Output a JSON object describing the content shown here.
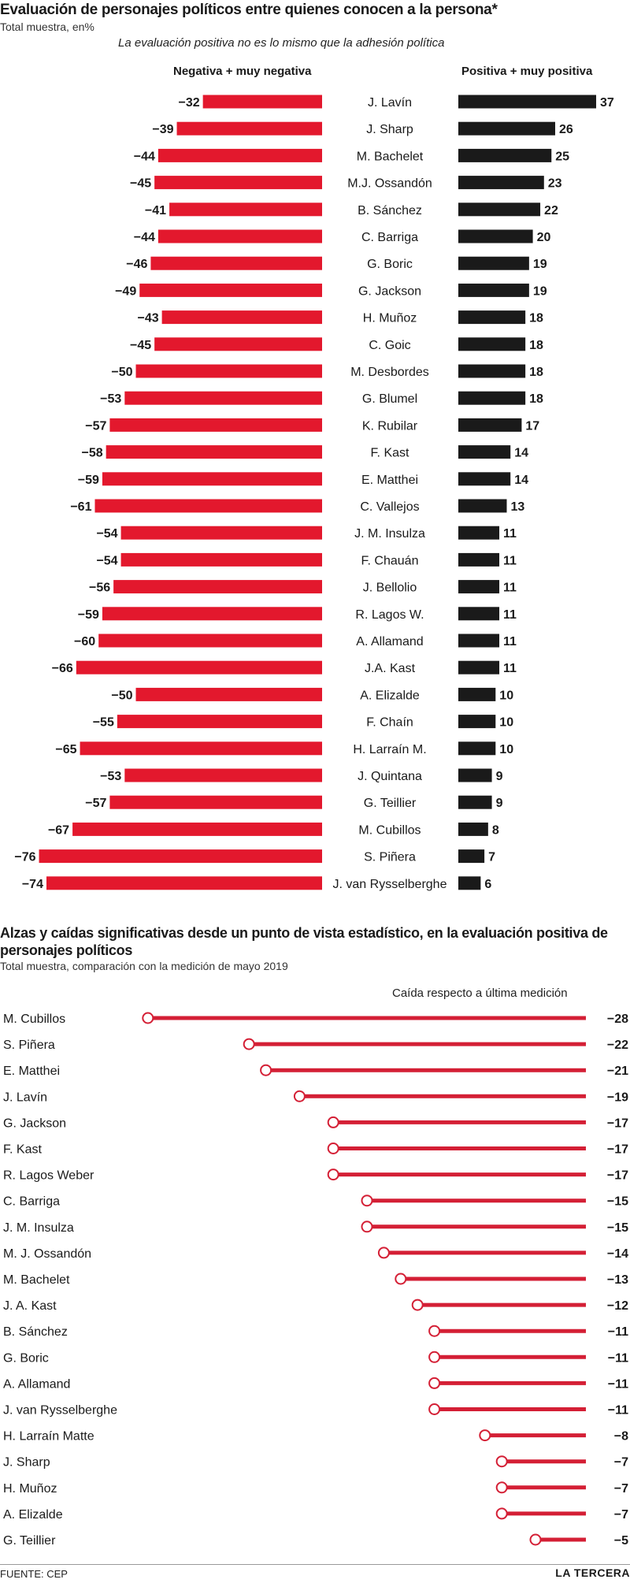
{
  "chart1": {
    "title": "Evaluación de personajes políticos entre quienes conocen a la persona*",
    "subtitle": "Total muestra, en%",
    "note": "La evaluación positiva no es lo mismo que la adhesión política",
    "negative_header": "Negativa + muy negativa",
    "positive_header": "Positiva + muy positiva"
  },
  "chart2": {
    "title": "Alzas y caídas significativas desde un punto de vista estadístico, en la evaluación positiva de personajes políticos",
    "subtitle": "Total muestra, comparación con la medición de mayo 2019",
    "header": "Caída respecto a última medición"
  },
  "footer": {
    "source": "FUENTE: CEP",
    "brand": "LA TERCERA"
  },
  "colors": {
    "negative": "#e3182d",
    "positive": "#1a1a1a",
    "dumbbell": "#d41f35"
  },
  "chart_data": [
    {
      "type": "bar",
      "layout": "diverging",
      "categories": [
        "J. Lavín",
        "J. Sharp",
        "M. Bachelet",
        "M.J. Ossandón",
        "B. Sánchez",
        "C. Barriga",
        "G. Boric",
        "G. Jackson",
        "H. Muñoz",
        "C. Goic",
        "M. Desbordes",
        "G. Blumel",
        "K. Rubilar",
        "F. Kast",
        "E. Matthei",
        "C. Vallejos",
        "J. M. Insulza",
        "F. Chauán",
        "J. Bellolio",
        "R. Lagos W.",
        "A. Allamand",
        "J.A. Kast",
        "A. Elizalde",
        "F. Chaín",
        "H. Larraín M.",
        "J. Quintana",
        "G. Teillier",
        "M. Cubillos",
        "S. Piñera",
        "J. van Rysselberghe"
      ],
      "series": [
        {
          "name": "Negativa + muy negativa",
          "values": [
            -32,
            -39,
            -44,
            -45,
            -41,
            -44,
            -46,
            -49,
            -43,
            -45,
            -50,
            -53,
            -57,
            -58,
            -59,
            -61,
            -54,
            -54,
            -56,
            -59,
            -60,
            -66,
            -50,
            -55,
            -65,
            -53,
            -57,
            -67,
            -76,
            -74
          ]
        },
        {
          "name": "Positiva + muy positiva",
          "values": [
            37,
            26,
            25,
            23,
            22,
            20,
            19,
            19,
            18,
            18,
            18,
            18,
            17,
            14,
            14,
            13,
            11,
            11,
            11,
            11,
            11,
            11,
            10,
            10,
            10,
            9,
            9,
            8,
            7,
            6
          ]
        }
      ]
    },
    {
      "type": "bar",
      "layout": "dumbbell",
      "categories": [
        "M. Cubillos",
        "S. Piñera",
        "E. Matthei",
        "J. Lavín",
        "G. Jackson",
        "F. Kast",
        "R. Lagos Weber",
        "C. Barriga",
        "J. M. Insulza",
        "M. J. Ossandón",
        "M. Bachelet",
        "J. A. Kast",
        "B. Sánchez",
        "G. Boric",
        "A. Allamand",
        "J. van Rysselberghe",
        "H. Larraín Matte",
        "J. Sharp",
        "H. Muñoz",
        "A. Elizalde",
        "G. Teillier"
      ],
      "values": [
        -28,
        -22,
        -21,
        -19,
        -17,
        -17,
        -17,
        -15,
        -15,
        -14,
        -13,
        -12,
        -11,
        -11,
        -11,
        -11,
        -8,
        -7,
        -7,
        -7,
        -5
      ]
    }
  ]
}
